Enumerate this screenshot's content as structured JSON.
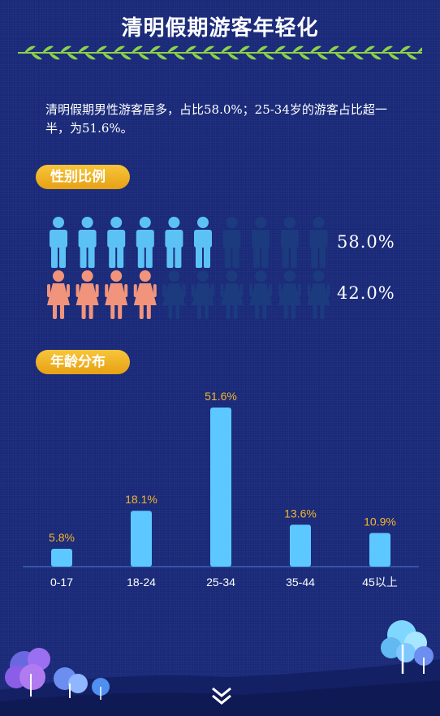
{
  "title": "清明假期游客年轻化",
  "intro": "清明假期男性游客居多，占比58.0%；25-34岁的游客占比超一半，为51.6%。",
  "gender": {
    "label": "性别比例",
    "male_pct_text": "58.0%",
    "female_pct_text": "42.0%",
    "male_filled": 6,
    "female_filled": 4,
    "total_icons": 10,
    "male_color": "#5cc2f5",
    "female_color": "#f1947b",
    "dim_color": "#1c3a7e"
  },
  "age": {
    "label": "年龄分布"
  },
  "chart_data": {
    "type": "bar",
    "categories": [
      "0-17",
      "18-24",
      "25-34",
      "35-44",
      "45以上"
    ],
    "values": [
      5.8,
      18.1,
      51.6,
      13.6,
      10.9
    ],
    "data_labels": [
      "5.8%",
      "18.1%",
      "51.6%",
      "13.6%",
      "10.9%"
    ],
    "ylim": [
      0,
      51.6
    ],
    "bar_color": "#5cc8ff",
    "label_color": "#f5b52d",
    "grid": false
  }
}
